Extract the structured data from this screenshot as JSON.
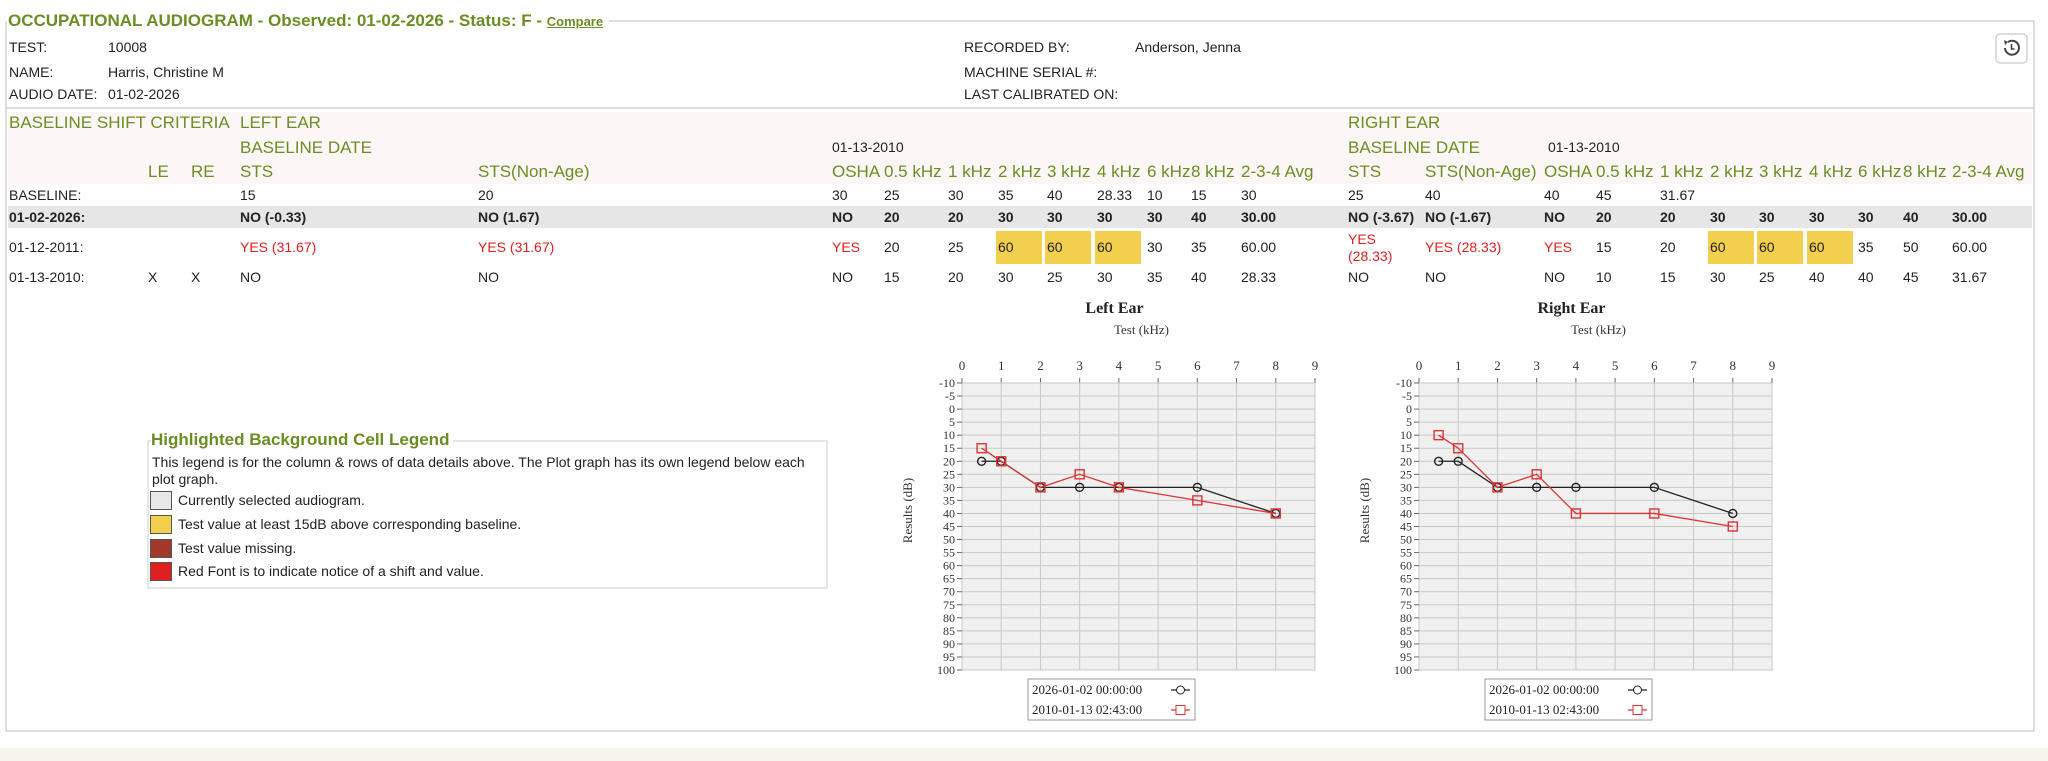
{
  "header": {
    "title": "OCCUPATIONAL AUDIOGRAM - Observed: 01-02-2026 - Status: F -",
    "link": "Compare"
  },
  "info": {
    "left": [
      {
        "label": "TEST:",
        "value": "10008"
      },
      {
        "label": "NAME:",
        "value": "Harris, Christine M"
      },
      {
        "label": "AUDIO DATE:",
        "value": "01-02-2026"
      }
    ],
    "right": [
      {
        "label": "RECORDED BY:",
        "value": "Anderson, Jenna"
      },
      {
        "label": "MACHINE SERIAL #:"
      },
      {
        "label": "LAST CALIBRATED ON:"
      }
    ]
  },
  "left_ear": {
    "section": "BASELINE SHIFT CRITERIA",
    "title": "LEFT EAR",
    "baseline_date_label": "BASELINE DATE",
    "baseline_date": "01-13-2010",
    "columns": [
      "LE",
      "RE",
      "STS",
      "STS(Non-Age)",
      "OSHA",
      "0.5 kHz",
      "1 kHz",
      "2 kHz",
      "3 kHz",
      "4 kHz",
      "6 kHz",
      "8 kHz",
      "2-3-4 Avg"
    ],
    "rows": [
      {
        "label": "BASELINE:",
        "cells": [
          null,
          null,
          "15",
          "20",
          "30",
          "25",
          "30",
          "35",
          "40",
          "28.33",
          "10",
          "15",
          "30"
        ]
      },
      {
        "label": "01-02-2026:",
        "cells": [
          null,
          null,
          "NO (-0.33)",
          "NO (1.67)",
          "NO",
          "20",
          "20",
          "30",
          "30",
          "30",
          "30",
          "40",
          "30.00"
        ]
      },
      {
        "label": "01-12-2011:",
        "cells": [
          null,
          null,
          "YES (31.67)",
          "YES (31.67)",
          "YES",
          "20",
          "25",
          "60",
          "60",
          "60",
          "30",
          "35",
          "60.00"
        ]
      },
      {
        "label": "01-13-2010:",
        "cells": [
          "X",
          "X",
          "NO",
          "NO",
          "NO",
          "15",
          "20",
          "30",
          "25",
          "30",
          "35",
          "40",
          "28.33"
        ]
      }
    ]
  },
  "right_ear": {
    "title": "RIGHT EAR",
    "baseline_date_label": "BASELINE DATE",
    "baseline_date": "01-13-2010",
    "columns": [
      "STS",
      "STS(Non-Age)",
      "OSHA",
      "0.5 kHz",
      "1 kHz",
      "2 kHz",
      "3 kHz",
      "4 kHz",
      "6 kHz",
      "8 kHz",
      "2-3-4 Avg"
    ],
    "rows": [
      {
        "cells": [
          "25",
          "40",
          "40",
          "45",
          "31.67",
          null,
          null,
          null,
          null,
          null,
          null
        ]
      },
      {
        "cells": [
          "NO (-3.67)",
          "NO (-1.67)",
          "NO",
          "20",
          "20",
          "30",
          "30",
          "30",
          "30",
          "40",
          "30.00"
        ]
      },
      {
        "cells": [
          "YES (28.33)",
          "YES (28.33)",
          "YES",
          "15",
          "20",
          "60",
          "60",
          "60",
          "35",
          "50",
          "60.00"
        ]
      },
      {
        "cells": [
          "NO",
          "NO",
          "NO",
          "10",
          "15",
          "30",
          "25",
          "40",
          "40",
          "45",
          "31.67"
        ]
      }
    ]
  },
  "cell_legend": {
    "title": "Highlighted Background Cell Legend",
    "description": "This legend is for the column & rows of data details above. The Plot graph has its own legend below each plot graph.",
    "items": [
      {
        "label": "Currently selected audiogram.",
        "color": "#e8e8e8"
      },
      {
        "label": "Test value at least 15dB above corresponding baseline.",
        "color": "#f2d04d"
      },
      {
        "label": "Test value missing.",
        "color": "#a0392a"
      },
      {
        "label": "Red Font is to indicate notice of a shift and value.",
        "color": "#e02020"
      }
    ]
  },
  "chart_data": [
    {
      "type": "line",
      "title": "Left Ear",
      "x_label": "Test (kHz)",
      "y_label": "Results (dB)",
      "x": [
        0.5,
        1,
        2,
        3,
        4,
        6,
        8
      ],
      "series": [
        {
          "name": "2026-01-02 00:00:00",
          "color": "#222222",
          "marker": "circle",
          "values": [
            20,
            20,
            30,
            30,
            30,
            30,
            40
          ]
        },
        {
          "name": "2010-01-13 02:43:00",
          "color": "#dd3333",
          "marker": "square",
          "values": [
            15,
            20,
            30,
            25,
            30,
            35,
            40
          ]
        }
      ],
      "xlim": [
        0,
        9
      ],
      "xticks": [
        0,
        1,
        2,
        3,
        4,
        5,
        6,
        7,
        8,
        9
      ],
      "ylim": [
        -10,
        100
      ],
      "y_inverted": true,
      "yticks": [
        -10,
        -5,
        0,
        5,
        10,
        15,
        20,
        25,
        30,
        35,
        40,
        45,
        50,
        55,
        60,
        65,
        70,
        75,
        80,
        85,
        90,
        95,
        100
      ],
      "grid": true
    },
    {
      "type": "line",
      "title": "Right Ear",
      "x_label": "Test (kHz)",
      "y_label": "Results (dB)",
      "x": [
        0.5,
        1,
        2,
        3,
        4,
        6,
        8
      ],
      "series": [
        {
          "name": "2026-01-02 00:00:00",
          "color": "#222222",
          "marker": "circle",
          "values": [
            20,
            20,
            30,
            30,
            30,
            30,
            40
          ]
        },
        {
          "name": "2010-01-13 02:43:00",
          "color": "#dd3333",
          "marker": "square",
          "values": [
            10,
            15,
            30,
            25,
            40,
            40,
            45
          ]
        }
      ],
      "xlim": [
        0,
        9
      ],
      "xticks": [
        0,
        1,
        2,
        3,
        4,
        5,
        6,
        7,
        8,
        9
      ],
      "ylim": [
        -10,
        100
      ],
      "y_inverted": true,
      "yticks": [
        -10,
        -5,
        0,
        5,
        10,
        15,
        20,
        25,
        30,
        35,
        40,
        45,
        50,
        55,
        60,
        65,
        70,
        75,
        80,
        85,
        90,
        95,
        100
      ],
      "grid": true
    }
  ]
}
